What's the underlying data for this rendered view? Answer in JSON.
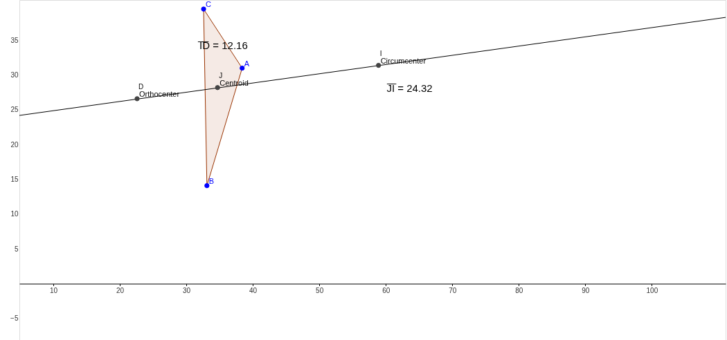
{
  "chart_data": {
    "type": "scatter",
    "xlim": [
      4.9,
      111.1
    ],
    "ylim": [
      -8.1,
      40.8
    ],
    "xticks": [
      10,
      20,
      30,
      40,
      50,
      60,
      70,
      80,
      90,
      100
    ],
    "yticks": [
      -5,
      5,
      10,
      15,
      20,
      25,
      30,
      35
    ],
    "grid": false,
    "marker": "circle",
    "series": [
      {
        "type": "area",
        "marker": "none",
        "color": "#993300",
        "x": [
          38.4,
          33.1,
          32.6,
          38.4
        ],
        "values": [
          31.0,
          14.1,
          39.5,
          31.0
        ]
      },
      {
        "type": "line",
        "marker": "none",
        "color": "#000000",
        "x": [
          4.9,
          111.1
        ],
        "values": [
          24.2,
          38.3
        ]
      },
      {
        "color": "#0000ff",
        "x": [
          38.4,
          33.1,
          32.6
        ],
        "values": [
          31.0,
          14.1,
          39.5
        ],
        "value_labels": [
          "A",
          "B",
          "C"
        ]
      },
      {
        "color": "#444444",
        "x": [
          22.6,
          34.7,
          58.9
        ],
        "values": [
          26.6,
          28.2,
          31.4
        ],
        "value_labels": [
          "Orthocenter",
          "Centroid",
          "Circumcenter"
        ]
      }
    ],
    "annotations": [
      {
        "text": "D",
        "x": 22.6,
        "y": 26.6
      },
      {
        "text": "J",
        "x": 34.7,
        "y": 28.2
      },
      {
        "text": "I",
        "x": 58.9,
        "y": 31.4
      },
      "I̅D̅ = 12.16",
      "J̅I̅ = 24.32"
    ]
  }
}
